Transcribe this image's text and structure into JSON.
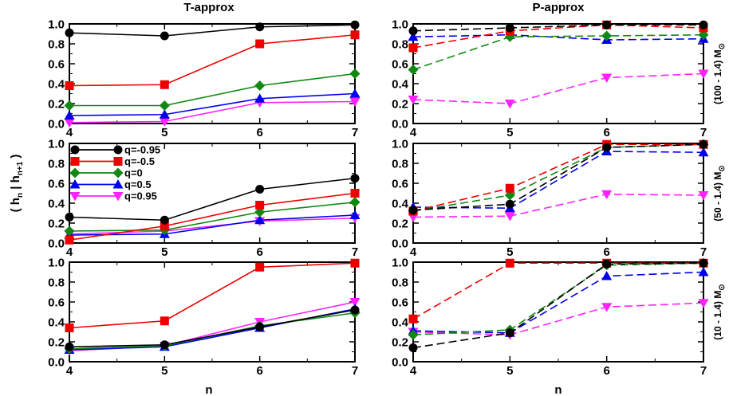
{
  "figure": {
    "left_title": "T-approx",
    "right_title": "P-approx",
    "xlabel": "n",
    "ylabel_main": "( h",
    "ylabel_sub1": "n",
    "ylabel_mid": " | h",
    "ylabel_sub2": "n+1",
    "ylabel_end": " )"
  },
  "row_labels": [
    {
      "main": "(100 - 1.4) M",
      "sub": "⊙"
    },
    {
      "main": "(50 - 1.4) M",
      "sub": "⊙"
    },
    {
      "main": "(10 - 1.4) M",
      "sub": "⊙"
    }
  ],
  "colors": {
    "q=-0.95": "#000000",
    "q=-0.5": "#ee0000",
    "q=0": "#118811",
    "q=0.5": "#0000ee",
    "q=0.95": "#ff22ff"
  },
  "legend": [
    {
      "label": "q=-0.95",
      "marker": "circle"
    },
    {
      "label": "q=-0.5",
      "marker": "square"
    },
    {
      "label": "q=0",
      "marker": "diamond"
    },
    {
      "label": "q=0.5",
      "marker": "triangle-up"
    },
    {
      "label": "q=0.95",
      "marker": "triangle-down"
    }
  ],
  "chart_data": [
    {
      "type": "line",
      "panel": "T-approx (100 - 1.4) M",
      "line_style": "solid",
      "x": [
        4,
        5,
        6,
        7
      ],
      "xlim": [
        4,
        7
      ],
      "ylim": [
        0,
        1.0
      ],
      "xticks": [
        "4",
        "5",
        "6",
        "7"
      ],
      "yticks": [
        "0.0",
        "0.2",
        "0.4",
        "0.6",
        "0.8",
        "1.0"
      ],
      "series": [
        {
          "name": "q=-0.95",
          "values": [
            0.91,
            0.88,
            0.97,
            0.99
          ]
        },
        {
          "name": "q=-0.5",
          "values": [
            0.38,
            0.39,
            0.8,
            0.89
          ]
        },
        {
          "name": "q=0",
          "values": [
            0.18,
            0.18,
            0.38,
            0.5
          ]
        },
        {
          "name": "q=0.5",
          "values": [
            0.08,
            0.09,
            0.25,
            0.3
          ]
        },
        {
          "name": "q=0.95",
          "values": [
            0.01,
            0.02,
            0.21,
            0.22
          ]
        }
      ]
    },
    {
      "type": "line",
      "panel": "P-approx (100 - 1.4) M",
      "line_style": "dashed",
      "x": [
        4,
        5,
        6,
        7
      ],
      "xlim": [
        4,
        7
      ],
      "ylim": [
        0,
        1.0
      ],
      "xticks": [
        "4",
        "5",
        "6",
        "7"
      ],
      "yticks": [
        "0.0",
        "0.2",
        "0.4",
        "0.6",
        "0.8",
        "1.0"
      ],
      "series": [
        {
          "name": "q=-0.95",
          "values": [
            0.93,
            0.96,
            0.99,
            0.99
          ]
        },
        {
          "name": "q=-0.5",
          "values": [
            0.76,
            0.93,
            0.99,
            0.96
          ]
        },
        {
          "name": "q=0",
          "values": [
            0.54,
            0.87,
            0.88,
            0.89
          ]
        },
        {
          "name": "q=0.5",
          "values": [
            0.87,
            0.89,
            0.84,
            0.85
          ]
        },
        {
          "name": "q=0.95",
          "values": [
            0.24,
            0.2,
            0.46,
            0.5
          ]
        }
      ]
    },
    {
      "type": "line",
      "panel": "T-approx (50 - 1.4) M",
      "line_style": "solid",
      "x": [
        4,
        5,
        6,
        7
      ],
      "xlim": [
        4,
        7
      ],
      "ylim": [
        0,
        1.0
      ],
      "xticks": [
        "4",
        "5",
        "6",
        "7"
      ],
      "yticks": [
        "0.0",
        "0.2",
        "0.4",
        "0.6",
        "0.8",
        "1.0"
      ],
      "series": [
        {
          "name": "q=-0.95",
          "values": [
            0.26,
            0.23,
            0.54,
            0.65
          ]
        },
        {
          "name": "q=-0.5",
          "values": [
            0.03,
            0.17,
            0.38,
            0.5
          ]
        },
        {
          "name": "q=0",
          "values": [
            0.12,
            0.13,
            0.31,
            0.41
          ]
        },
        {
          "name": "q=0.5",
          "values": [
            0.08,
            0.09,
            0.23,
            0.28
          ]
        },
        {
          "name": "q=0.95",
          "values": [
            0.09,
            0.12,
            0.22,
            0.25
          ]
        }
      ]
    },
    {
      "type": "line",
      "panel": "P-approx (50 - 1.4) M",
      "line_style": "dashed",
      "x": [
        4,
        5,
        6,
        7
      ],
      "xlim": [
        4,
        7
      ],
      "ylim": [
        0,
        1.0
      ],
      "xticks": [
        "4",
        "5",
        "6",
        "7"
      ],
      "yticks": [
        "0.0",
        "0.2",
        "0.4",
        "0.6",
        "0.8",
        "1.0"
      ],
      "series": [
        {
          "name": "q=-0.95",
          "values": [
            0.33,
            0.39,
            0.96,
            0.99
          ]
        },
        {
          "name": "q=-0.5",
          "values": [
            0.32,
            0.55,
            0.99,
            0.99
          ]
        },
        {
          "name": "q=0",
          "values": [
            0.32,
            0.48,
            0.96,
            0.99
          ]
        },
        {
          "name": "q=0.5",
          "values": [
            0.36,
            0.35,
            0.92,
            0.91
          ]
        },
        {
          "name": "q=0.95",
          "values": [
            0.26,
            0.27,
            0.49,
            0.48
          ]
        }
      ]
    },
    {
      "type": "line",
      "panel": "T-approx (10 - 1.4) M",
      "line_style": "solid",
      "x": [
        4,
        5,
        6,
        7
      ],
      "xlim": [
        4,
        7
      ],
      "ylim": [
        0,
        1.0
      ],
      "xticks": [
        "4",
        "5",
        "6",
        "7"
      ],
      "yticks": [
        "0.0",
        "0.2",
        "0.4",
        "0.6",
        "0.8",
        "1.0"
      ],
      "series": [
        {
          "name": "q=-0.95",
          "values": [
            0.15,
            0.17,
            0.35,
            0.52
          ]
        },
        {
          "name": "q=-0.5",
          "values": [
            0.34,
            0.41,
            0.95,
            0.99
          ]
        },
        {
          "name": "q=0",
          "values": [
            0.13,
            0.16,
            0.36,
            0.49
          ]
        },
        {
          "name": "q=0.5",
          "values": [
            0.12,
            0.15,
            0.34,
            0.53
          ]
        },
        {
          "name": "q=0.95",
          "values": [
            0.11,
            0.16,
            0.4,
            0.6
          ]
        }
      ]
    },
    {
      "type": "line",
      "panel": "P-approx (10 - 1.4) M",
      "line_style": "dashed",
      "x": [
        4,
        5,
        6,
        7
      ],
      "xlim": [
        4,
        7
      ],
      "ylim": [
        0,
        1.0
      ],
      "xticks": [
        "4",
        "5",
        "6",
        "7"
      ],
      "yticks": [
        "0.0",
        "0.2",
        "0.4",
        "0.6",
        "0.8",
        "1.0"
      ],
      "series": [
        {
          "name": "q=-0.95",
          "values": [
            0.14,
            0.29,
            0.98,
            0.99
          ]
        },
        {
          "name": "q=-0.5",
          "values": [
            0.43,
            0.99,
            0.99,
            0.99
          ]
        },
        {
          "name": "q=0",
          "values": [
            0.27,
            0.32,
            0.97,
            0.99
          ]
        },
        {
          "name": "q=0.5",
          "values": [
            0.31,
            0.29,
            0.86,
            0.9
          ]
        },
        {
          "name": "q=0.95",
          "values": [
            0.3,
            0.27,
            0.55,
            0.59
          ]
        }
      ]
    }
  ]
}
